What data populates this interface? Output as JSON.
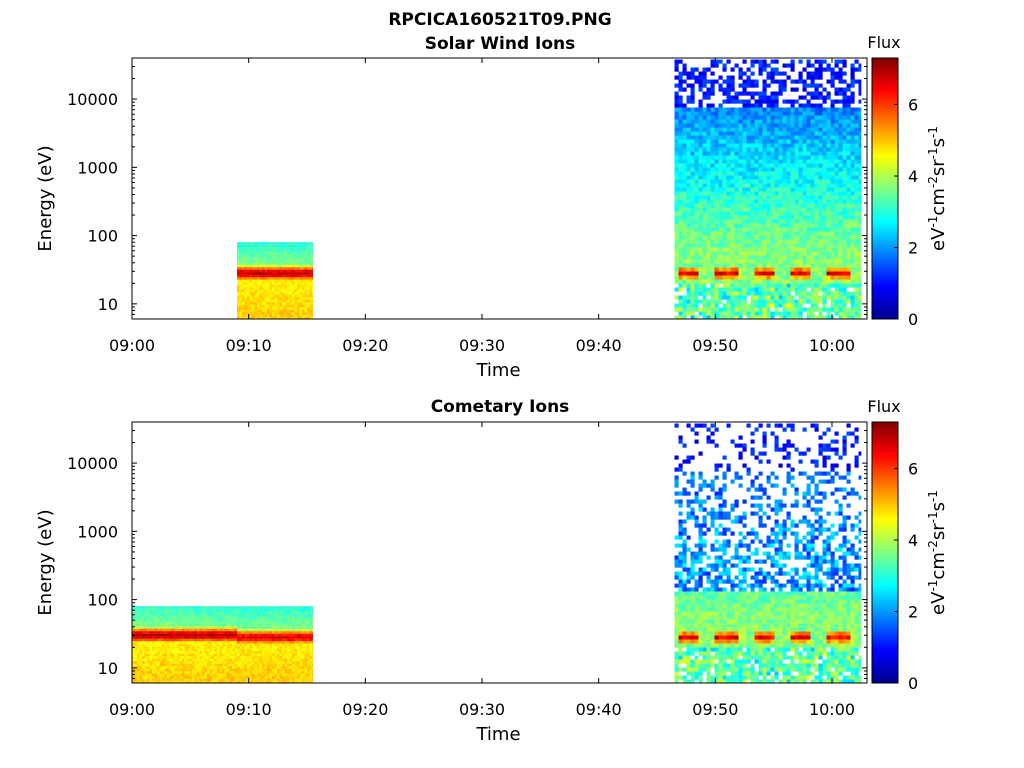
{
  "figure": {
    "title": "RPCICA160521T09.PNG"
  },
  "colormap": [
    "#00008f",
    "#0000ff",
    "#0080ff",
    "#00ffff",
    "#80ff80",
    "#ffff00",
    "#ff8000",
    "#ff0000",
    "#800000"
  ],
  "chart_data": [
    {
      "type": "heatmap",
      "title": "Solar Wind Ions",
      "xlabel": "Time",
      "ylabel": "Energy (eV)",
      "x_ticks": [
        "09:00",
        "09:10",
        "09:20",
        "09:30",
        "09:40",
        "09:50",
        "10:00"
      ],
      "xlim": [
        "09:00",
        "10:03"
      ],
      "y_scale": "log",
      "y_ticks": [
        "10",
        "100",
        "1000",
        "10000"
      ],
      "ylim": [
        6,
        40000
      ],
      "colorbar": {
        "label_main": "Flux",
        "unit": "eV",
        "unit_rest": [
          [
            "-1",
            ""
          ],
          [
            "cm",
            ""
          ],
          [
            "-2",
            ""
          ],
          [
            "sr",
            ""
          ],
          [
            "-1",
            ""
          ],
          [
            "s",
            ""
          ],
          [
            "-1",
            ""
          ]
        ],
        "ticks": [
          "0",
          "2",
          "4",
          "6"
        ],
        "range": [
          0,
          7.3
        ]
      },
      "data_blocks": [
        {
          "time_start": "09:09",
          "time_end": "09:15.5",
          "energy_min": 6,
          "energy_max": 80,
          "peak_energy_eV": 28,
          "peak_flux": 6.8,
          "noise": "low"
        },
        {
          "time_start": "09:46.5",
          "time_end": "10:02.5",
          "energy_min": 6,
          "energy_max": 38000,
          "peak_energy_eV": 28,
          "peak_flux": 6.5,
          "pulses": 5,
          "noise": "high"
        }
      ]
    },
    {
      "type": "heatmap",
      "title": "Cometary Ions",
      "xlabel": "Time",
      "ylabel": "Energy (eV)",
      "x_ticks": [
        "09:00",
        "09:10",
        "09:20",
        "09:30",
        "09:40",
        "09:50",
        "10:00"
      ],
      "xlim": [
        "09:00",
        "10:03"
      ],
      "y_scale": "log",
      "y_ticks": [
        "10",
        "100",
        "1000",
        "10000"
      ],
      "ylim": [
        6,
        40000
      ],
      "colorbar": {
        "label_main": "Flux",
        "unit": "eV",
        "ticks": [
          "0",
          "2",
          "4",
          "6"
        ],
        "range": [
          0,
          7.3
        ]
      },
      "data_blocks": [
        {
          "time_start": "09:00",
          "time_end": "09:09",
          "energy_min": 6,
          "energy_max": 80,
          "peak_energy_eV": 30,
          "peak_flux": 6.9,
          "noise": "low"
        },
        {
          "time_start": "09:09",
          "time_end": "09:15.5",
          "energy_min": 6,
          "energy_max": 80,
          "peak_energy_eV": 28,
          "peak_flux": 6.6,
          "noise": "low"
        },
        {
          "time_start": "09:46.5",
          "time_end": "10:02.5",
          "energy_min": 6,
          "energy_max": 38000,
          "peak_energy_eV": 28,
          "peak_flux": 6.5,
          "pulses": 5,
          "noise": "sparse"
        }
      ]
    }
  ]
}
